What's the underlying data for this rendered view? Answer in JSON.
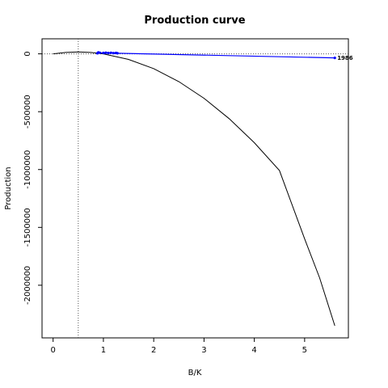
{
  "chart_data": {
    "type": "line",
    "title": "Production curve",
    "xlabel": "B/K",
    "ylabel": "Production",
    "xlim": [
      -0.22,
      5.87
    ],
    "ylim": [
      -2455000,
      130000
    ],
    "x_ticks": [
      0,
      1,
      2,
      3,
      4,
      5
    ],
    "x_tick_labels": [
      "0",
      "1",
      "2",
      "3",
      "4",
      "5"
    ],
    "y_ticks": [
      0,
      -500000,
      -1000000,
      -1500000,
      -2000000
    ],
    "y_tick_labels": [
      "0",
      "-500000",
      "-1000000",
      "-1500000",
      "-2000000"
    ],
    "colors": {
      "curve": "#000000",
      "trajectory": "#0000ff",
      "reference": "#555555"
    },
    "reference_lines": {
      "vline_x": 0.5,
      "hline_y": 0
    },
    "curve": {
      "x": [
        0,
        0.25,
        0.5,
        0.75,
        1,
        1.5,
        2,
        2.5,
        3,
        3.5,
        4,
        4.5,
        5,
        5.3,
        5.6
      ],
      "y": [
        0,
        12000,
        16000,
        12000,
        0,
        -48000,
        -128000,
        -240000,
        -384000,
        -560000,
        -768000,
        -1008000,
        -1600000,
        -1938000,
        -2350000
      ]
    },
    "observed": {
      "x": [
        0.88,
        0.9,
        0.93,
        1.0,
        1.05,
        1.1,
        1.15,
        1.2,
        1.25,
        1.28,
        5.6
      ],
      "y": [
        5000,
        12000,
        9000,
        8000,
        10000,
        7000,
        9000,
        6000,
        8000,
        5000,
        -35000
      ],
      "end_label": "1986"
    }
  }
}
